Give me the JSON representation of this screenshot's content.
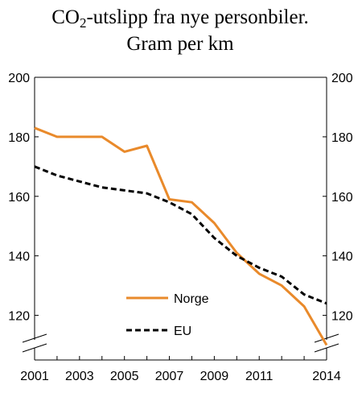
{
  "chart_data": {
    "type": "line",
    "title_line1_prefix": "CO",
    "title_line1_sub": "2",
    "title_line1_suffix": "-utslipp fra nye personbiler.",
    "title_line2": "Gram per km",
    "x": [
      2001,
      2002,
      2003,
      2004,
      2005,
      2006,
      2007,
      2008,
      2009,
      2010,
      2011,
      2012,
      2013,
      2014
    ],
    "x_tick_labels": [
      "2001",
      "2003",
      "2005",
      "2007",
      "2009",
      "2011",
      "2014"
    ],
    "x_tick_values": [
      2001,
      2003,
      2005,
      2007,
      2009,
      2011,
      2014
    ],
    "y_tick_labels": [
      "200",
      "180",
      "160",
      "140",
      "120"
    ],
    "y_tick_values": [
      200,
      180,
      160,
      140,
      120
    ],
    "ylim": [
      105,
      200
    ],
    "axis_break": true,
    "grid": false,
    "legend_position": "bottom-center",
    "series": [
      {
        "name": "Norge",
        "color": "#e98a2b",
        "style": "solid",
        "values": [
          183,
          180,
          180,
          180,
          175,
          177,
          159,
          158,
          151,
          141,
          134,
          130,
          123,
          110
        ]
      },
      {
        "name": "EU",
        "color": "#000000",
        "style": "dashed",
        "values": [
          170,
          167,
          165,
          163,
          162,
          161,
          158,
          154,
          146,
          140,
          136,
          133,
          127,
          124
        ]
      }
    ]
  }
}
